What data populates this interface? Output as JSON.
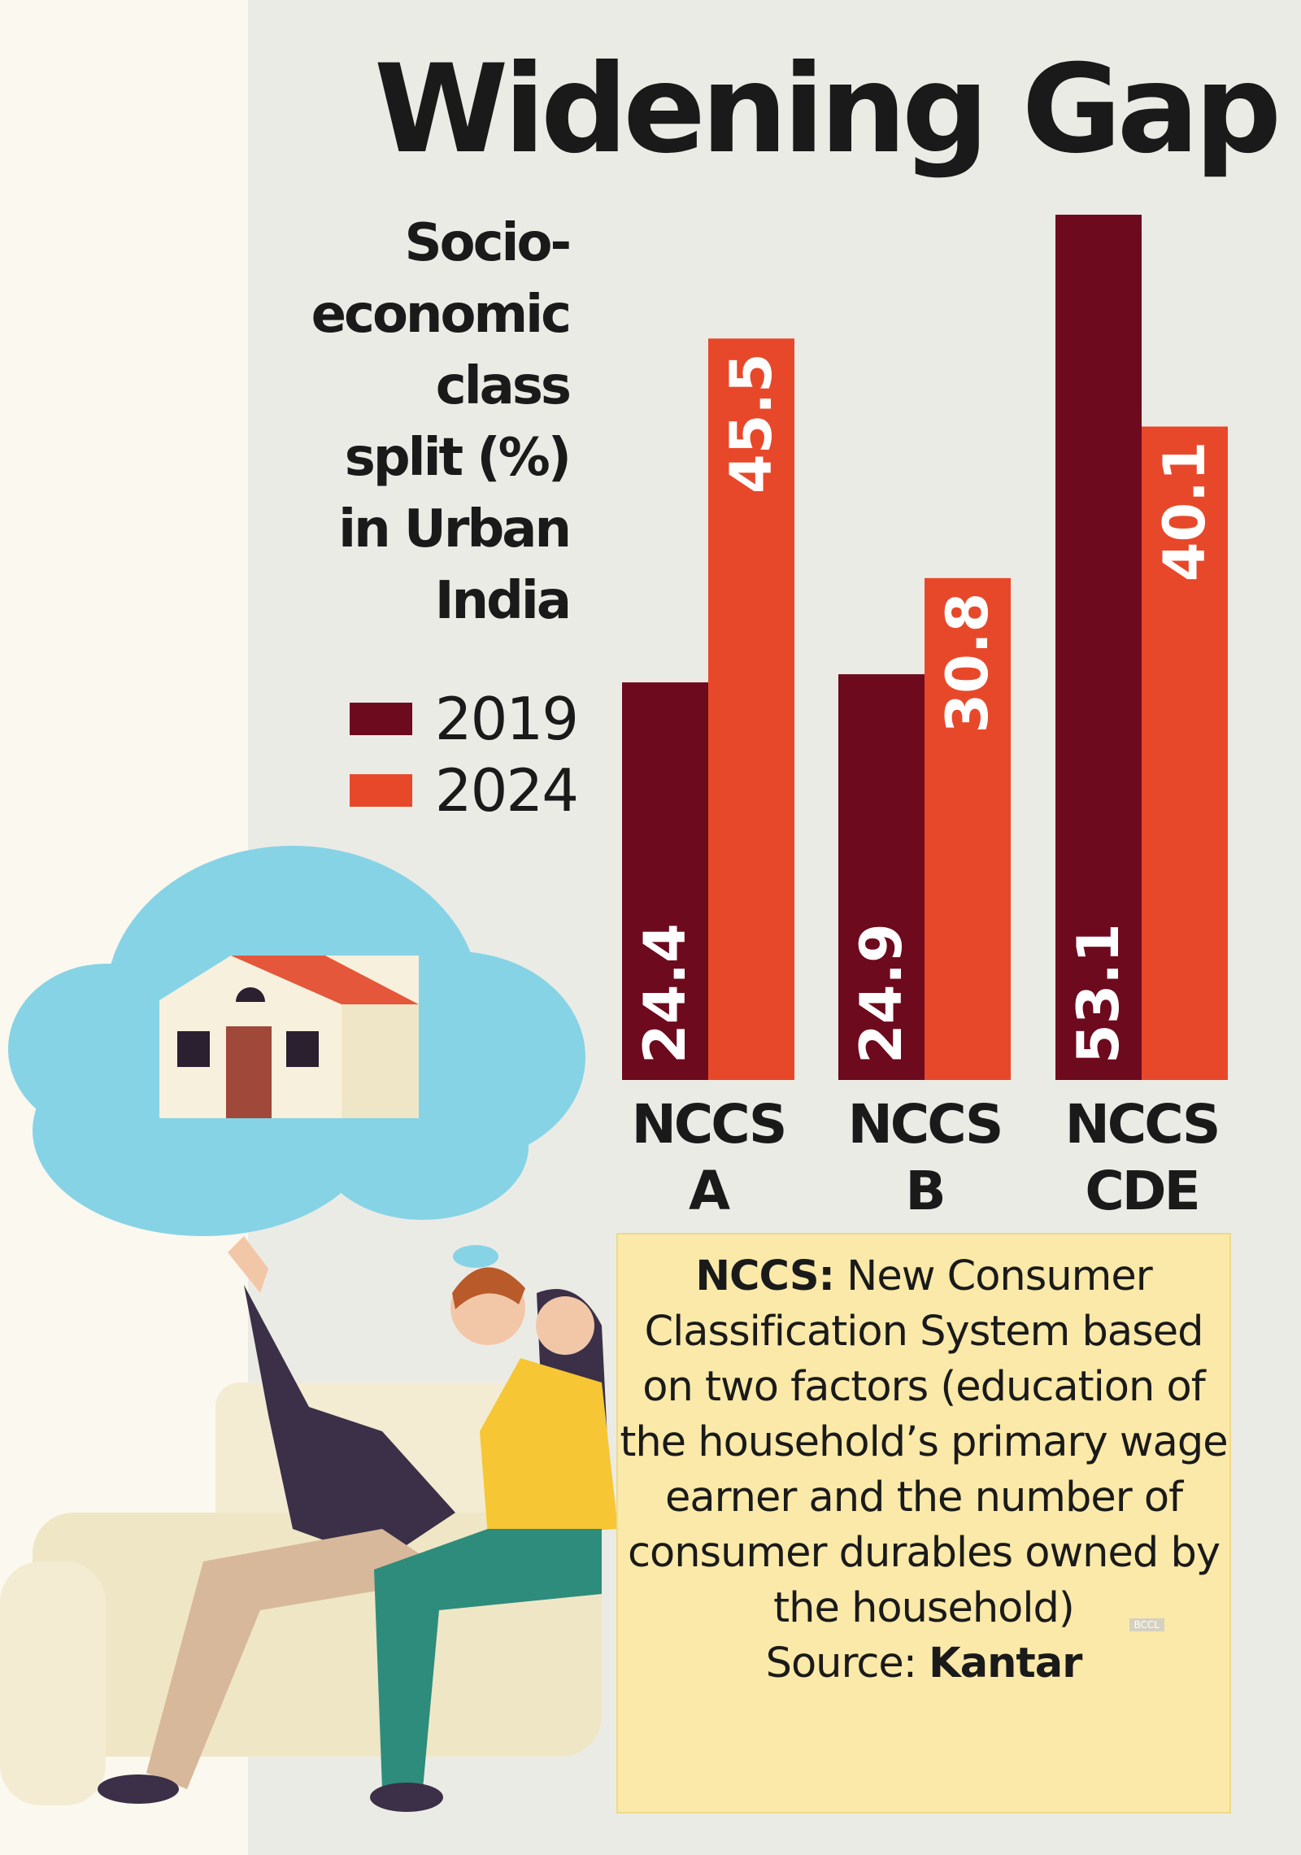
{
  "chart_data": {
    "type": "bar",
    "title": "Widening Gap",
    "subtitle": "Socio-economic class split (%) in Urban India",
    "categories": [
      "NCCS A",
      "NCCS B",
      "NCCS CDE"
    ],
    "category_lines": [
      [
        "NCCS",
        "A"
      ],
      [
        "NCCS",
        "B"
      ],
      [
        "NCCS",
        "CDE"
      ]
    ],
    "series": [
      {
        "name": "2019",
        "color": "#6e0a1e",
        "values": [
          24.4,
          24.9,
          53.1
        ]
      },
      {
        "name": "2024",
        "color": "#e8482a",
        "values": [
          45.5,
          30.8,
          40.1
        ]
      }
    ],
    "ylim": [
      0,
      53.1
    ],
    "data_labels": true,
    "legend_position": "left",
    "grid": false
  },
  "subtitle_lines": [
    "Socio-",
    "economic",
    "class",
    "split (%)",
    "in Urban",
    "India"
  ],
  "note": {
    "term": "NCCS:",
    "definition": " New Consumer Classification System based on two factors (education of the household’s primary wage earner and the number of consumer durables owned by the household)",
    "source_label": "Source: ",
    "source": "Kantar"
  },
  "watermark": "BCCL",
  "colors": {
    "bar_2019": "#6e0a1e",
    "bar_2024": "#e8482a",
    "panel": "#ebebe6",
    "note_bg": "#fae9a8",
    "cloud": "#86d3e6"
  }
}
